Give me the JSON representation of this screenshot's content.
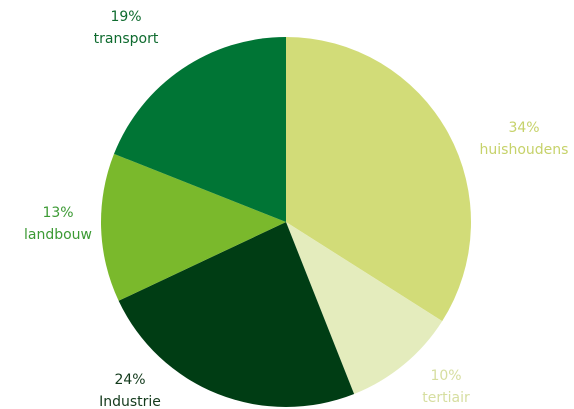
{
  "chart_data": {
    "type": "pie",
    "categories": [
      "huishoudens",
      "tertiair",
      "Industrie",
      "landbouw",
      "transport"
    ],
    "values": [
      34,
      10,
      24,
      13,
      19
    ],
    "value_labels": [
      "34%",
      "10%",
      "24%",
      "13%",
      "19%"
    ],
    "colors": [
      "#d2dc78",
      "#e4ecbd",
      "#003d14",
      "#7ab92c",
      "#007535"
    ]
  }
}
